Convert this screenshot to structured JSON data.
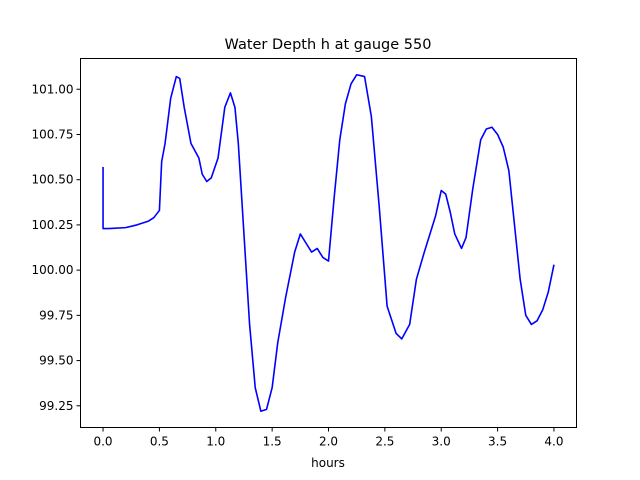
{
  "chart_data": {
    "type": "line",
    "title": "Water Depth h at gauge 550",
    "xlabel": "hours",
    "ylabel": "",
    "xlim": [
      -0.2,
      4.2
    ],
    "ylim": [
      99.13,
      101.17
    ],
    "x_ticks": [
      0.0,
      0.5,
      1.0,
      1.5,
      2.0,
      2.5,
      3.0,
      3.5,
      4.0
    ],
    "x_tick_labels": [
      "0.0",
      "0.5",
      "1.0",
      "1.5",
      "2.0",
      "2.5",
      "3.0",
      "3.5",
      "4.0"
    ],
    "y_ticks": [
      99.25,
      99.5,
      99.75,
      100.0,
      100.25,
      100.5,
      100.75,
      101.0
    ],
    "y_tick_labels": [
      "99.25",
      "99.50",
      "99.75",
      "100.00",
      "100.25",
      "100.50",
      "100.75",
      "101.00"
    ],
    "grid": false,
    "series": [
      {
        "color": "#0000ff",
        "x": [
          0.0,
          0.0,
          0.05,
          0.2,
          0.3,
          0.4,
          0.45,
          0.5,
          0.52,
          0.55,
          0.6,
          0.65,
          0.68,
          0.72,
          0.78,
          0.85,
          0.88,
          0.92,
          0.96,
          1.02,
          1.08,
          1.13,
          1.17,
          1.2,
          1.25,
          1.3,
          1.35,
          1.4,
          1.45,
          1.5,
          1.55,
          1.62,
          1.7,
          1.75,
          1.8,
          1.85,
          1.9,
          1.95,
          2.0,
          2.05,
          2.1,
          2.15,
          2.2,
          2.25,
          2.32,
          2.38,
          2.45,
          2.52,
          2.6,
          2.65,
          2.72,
          2.78,
          2.85,
          2.9,
          2.95,
          3.0,
          3.04,
          3.08,
          3.12,
          3.18,
          3.22,
          3.28,
          3.35,
          3.4,
          3.45,
          3.5,
          3.55,
          3.6,
          3.65,
          3.7,
          3.75,
          3.8,
          3.85,
          3.9,
          3.95,
          4.0
        ],
        "values": [
          100.57,
          100.23,
          100.23,
          100.235,
          100.25,
          100.27,
          100.29,
          100.33,
          100.6,
          100.7,
          100.95,
          101.07,
          101.06,
          100.9,
          100.7,
          100.62,
          100.53,
          100.49,
          100.51,
          100.62,
          100.9,
          100.98,
          100.9,
          100.7,
          100.2,
          99.7,
          99.35,
          99.22,
          99.23,
          99.35,
          99.6,
          99.85,
          100.1,
          100.2,
          100.15,
          100.1,
          100.12,
          100.07,
          100.05,
          100.4,
          100.72,
          100.92,
          101.03,
          101.08,
          101.07,
          100.85,
          100.35,
          99.8,
          99.65,
          99.62,
          99.7,
          99.95,
          100.1,
          100.2,
          100.3,
          100.44,
          100.42,
          100.32,
          100.2,
          100.12,
          100.18,
          100.45,
          100.72,
          100.78,
          100.79,
          100.75,
          100.68,
          100.55,
          100.25,
          99.95,
          99.75,
          99.7,
          99.72,
          99.78,
          99.88,
          100.03
        ]
      }
    ]
  }
}
